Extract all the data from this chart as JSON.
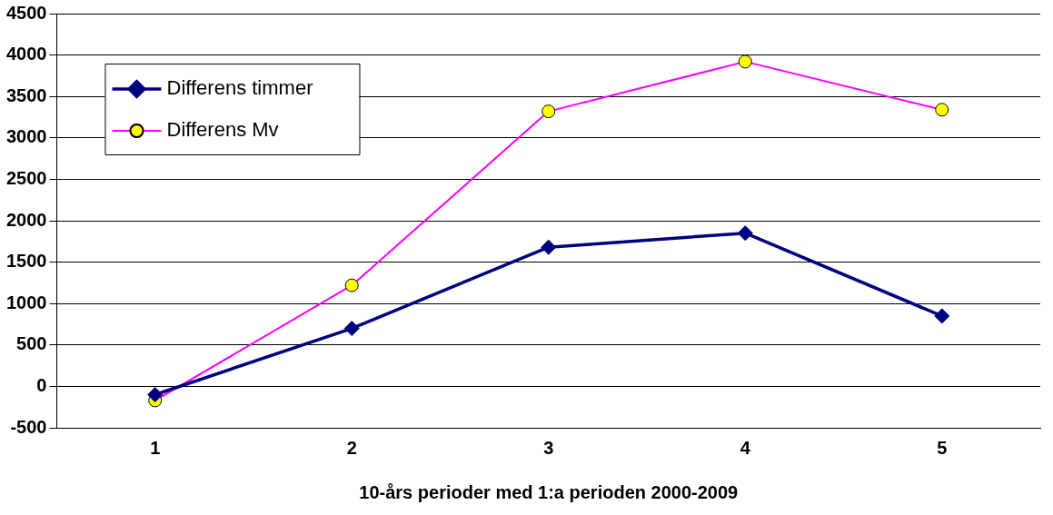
{
  "chart_data": {
    "type": "line",
    "xlabel": "10-års perioder med 1:a perioden 2000-2009",
    "categories": [
      "1",
      "2",
      "3",
      "4",
      "5"
    ],
    "series": [
      {
        "name": "Differens timmer",
        "color": "#000080",
        "marker": "diamond",
        "values": [
          -100,
          700,
          1680,
          1850,
          850
        ]
      },
      {
        "name": "Differens Mv",
        "color": "#ff00ff",
        "marker": "circle",
        "colors": [
          "#ffff00",
          "#ffff00",
          "#ffff00",
          "#ffff00",
          "#ffff00"
        ],
        "values": [
          -170,
          1220,
          3320,
          3920,
          3340
        ]
      }
    ],
    "ylim": [
      -500,
      4500
    ],
    "yticks": [
      -500,
      0,
      500,
      1000,
      1500,
      2000,
      2500,
      3000,
      3500,
      4000,
      4500
    ],
    "grid": "y",
    "legend": "top left"
  }
}
